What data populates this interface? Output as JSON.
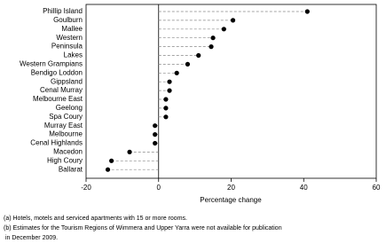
{
  "chart_data": {
    "type": "dot",
    "categories": [
      "Phillip Island",
      "Goulburn",
      "Mallee",
      "Western",
      "Peninsula",
      "Lakes",
      "Western Grampians",
      "Bendigo Loddon",
      "Gippsland",
      "Cenal Murray",
      "Melbourne East",
      "Geelong",
      "Spa Coury",
      "Murray East",
      "Melbourne",
      "Cenal Highlands",
      "Macedon",
      "High Coury",
      "Ballarat"
    ],
    "values": [
      41,
      20.5,
      18,
      15,
      14.5,
      11,
      8,
      5,
      3,
      3,
      2,
      2,
      2,
      -1,
      -1,
      -1,
      -8,
      -13,
      -14
    ],
    "color": "#000000",
    "xlim": [
      -20,
      60
    ],
    "xticks": [
      -20,
      0,
      20,
      40,
      60
    ],
    "xlabel": "Percentage change",
    "notes": [
      "(a) Hotels, motels and serviced apartments with 15 or more rooms.",
      "(b) Estimates for the Tourism Regions of Wimmera and Upper Yarra were not available for publication",
      " in December 2009."
    ]
  }
}
